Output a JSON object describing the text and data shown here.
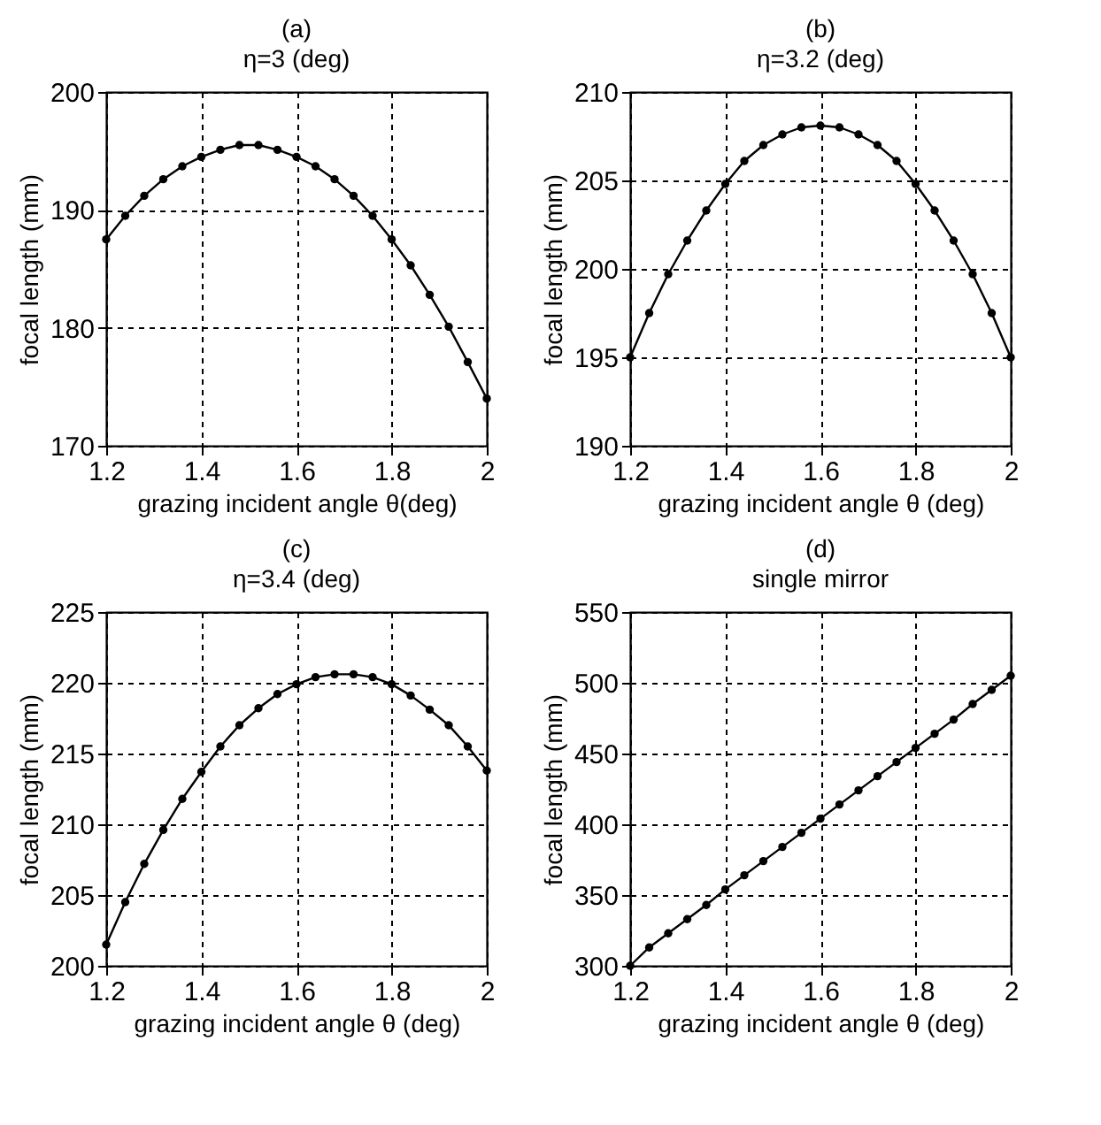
{
  "chart_data": [
    {
      "type": "line",
      "title": "(a)",
      "subtitle": "η=3 (deg)",
      "xlabel": "grazing incident angle θ(deg)",
      "ylabel": "focal length (mm)",
      "x": [
        1.2,
        1.24,
        1.28,
        1.32,
        1.36,
        1.4,
        1.44,
        1.48,
        1.52,
        1.56,
        1.6,
        1.64,
        1.68,
        1.72,
        1.76,
        1.8,
        1.84,
        1.88,
        1.92,
        1.96,
        2.0
      ],
      "series": [
        {
          "color": "#000000",
          "values": [
            187.5,
            189.5,
            191.2,
            192.6,
            193.7,
            194.5,
            195.1,
            195.5,
            195.5,
            195.1,
            194.5,
            193.7,
            192.6,
            191.2,
            189.5,
            187.5,
            185.3,
            182.8,
            180.1,
            177.1,
            174
          ]
        }
      ],
      "xlim": [
        1.2,
        2
      ],
      "xticks": [
        1.2,
        1.4,
        1.6,
        1.8,
        2
      ],
      "ylim": [
        170,
        200
      ],
      "yticks": [
        170,
        180,
        190,
        200
      ],
      "grid": true,
      "marker": "circle",
      "line_style": "solid"
    },
    {
      "type": "line",
      "title": "(b)",
      "subtitle": "η=3.2 (deg)",
      "xlabel": "grazing incident angle θ (deg)",
      "ylabel": "focal length (mm)",
      "x": [
        1.2,
        1.24,
        1.28,
        1.32,
        1.36,
        1.4,
        1.44,
        1.48,
        1.52,
        1.56,
        1.6,
        1.64,
        1.68,
        1.72,
        1.76,
        1.8,
        1.84,
        1.88,
        1.92,
        1.96,
        2.0
      ],
      "series": [
        {
          "color": "#000000",
          "values": [
            195,
            197.5,
            199.7,
            201.6,
            203.3,
            204.8,
            206.1,
            207.0,
            207.6,
            208.0,
            208.1,
            208.0,
            207.6,
            207.0,
            206.1,
            204.8,
            203.3,
            201.6,
            199.7,
            197.5,
            195
          ]
        }
      ],
      "xlim": [
        1.2,
        2
      ],
      "xticks": [
        1.2,
        1.4,
        1.6,
        1.8,
        2
      ],
      "ylim": [
        190,
        210
      ],
      "yticks": [
        190,
        195,
        200,
        205,
        210
      ],
      "grid": true,
      "marker": "circle",
      "line_style": "solid"
    },
    {
      "type": "line",
      "title": "(c)",
      "subtitle": "η=3.4 (deg)",
      "xlabel": "grazing incident angle θ (deg)",
      "ylabel": "focal length (mm)",
      "x": [
        1.2,
        1.24,
        1.28,
        1.32,
        1.36,
        1.4,
        1.44,
        1.48,
        1.52,
        1.56,
        1.6,
        1.64,
        1.68,
        1.72,
        1.76,
        1.8,
        1.84,
        1.88,
        1.92,
        1.96,
        2.0
      ],
      "series": [
        {
          "color": "#000000",
          "values": [
            201.5,
            204.5,
            207.2,
            209.6,
            211.8,
            213.7,
            215.5,
            217.0,
            218.2,
            219.2,
            219.9,
            220.4,
            220.6,
            220.6,
            220.4,
            219.9,
            219.1,
            218.1,
            217.0,
            215.5,
            213.8
          ]
        }
      ],
      "xlim": [
        1.2,
        2
      ],
      "xticks": [
        1.2,
        1.4,
        1.6,
        1.8,
        2
      ],
      "ylim": [
        200,
        225
      ],
      "yticks": [
        200,
        205,
        210,
        215,
        220,
        225
      ],
      "grid": true,
      "marker": "circle",
      "line_style": "solid"
    },
    {
      "type": "line",
      "title": "(d)",
      "subtitle": "single mirror",
      "xlabel": "grazing incident angle θ (deg)",
      "ylabel": "focal length (mm)",
      "x": [
        1.2,
        1.24,
        1.28,
        1.32,
        1.36,
        1.4,
        1.44,
        1.48,
        1.52,
        1.56,
        1.6,
        1.64,
        1.68,
        1.72,
        1.76,
        1.8,
        1.84,
        1.88,
        1.92,
        1.96,
        2.0
      ],
      "series": [
        {
          "color": "#000000",
          "values": [
            300,
            313,
            323,
            333,
            343,
            354,
            364,
            374,
            384,
            394,
            404,
            414,
            424,
            434,
            444,
            454,
            464,
            474,
            485,
            495,
            505
          ]
        }
      ],
      "xlim": [
        1.2,
        2
      ],
      "xticks": [
        1.2,
        1.4,
        1.6,
        1.8,
        2
      ],
      "ylim": [
        300,
        550
      ],
      "yticks": [
        300,
        350,
        400,
        450,
        500,
        550
      ],
      "grid": true,
      "marker": "circle",
      "line_style": "solid"
    }
  ]
}
